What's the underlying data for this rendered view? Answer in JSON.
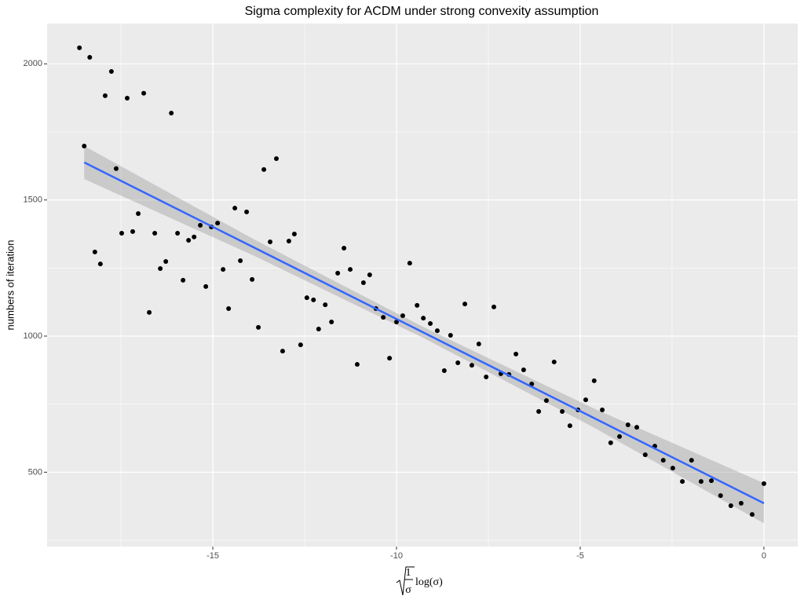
{
  "chart_data": {
    "type": "scatter",
    "title": "Sigma complexity for ACDM under strong convexity assumption",
    "y_label": "numbers of iteration",
    "x_label": {
      "numerator": "1",
      "denominator": "σ",
      "function": "log(σ)"
    },
    "xlim": [
      -19.51,
      0.92
    ],
    "ylim": [
      227,
      2148
    ],
    "xticks": [
      -15,
      -10,
      -5,
      0
    ],
    "yticks": [
      500,
      1000,
      1500,
      2000
    ],
    "minor_xticks": [
      -17.5,
      -12.5,
      -7.5,
      -2.5
    ],
    "minor_yticks": [
      250,
      750,
      1250,
      1750
    ],
    "grid": true,
    "point_color": "#000000",
    "line_color": "#3366FF",
    "band_color": "#999999",
    "x": [
      -18.63,
      -18.5,
      -18.35,
      -18.21,
      -18.06,
      -17.93,
      -17.76,
      -17.63,
      -17.48,
      -17.33,
      -17.18,
      -17.03,
      -16.88,
      -16.73,
      -16.58,
      -16.43,
      -16.28,
      -16.13,
      -15.96,
      -15.81,
      -15.66,
      -15.51,
      -15.34,
      -15.19,
      -15.04,
      -14.87,
      -14.72,
      -14.57,
      -14.4,
      -14.25,
      -14.08,
      -13.93,
      -13.76,
      -13.61,
      -13.44,
      -13.27,
      -13.1,
      -12.93,
      -12.78,
      -12.61,
      -12.44,
      -12.26,
      -12.12,
      -11.94,
      -11.77,
      -11.6,
      -11.43,
      -11.26,
      -11.07,
      -10.9,
      -10.73,
      -10.56,
      -10.36,
      -10.19,
      -10.0,
      -9.83,
      -9.64,
      -9.44,
      -9.27,
      -9.08,
      -8.89,
      -8.7,
      -8.53,
      -8.33,
      -8.14,
      -7.95,
      -7.76,
      -7.56,
      -7.35,
      -7.16,
      -6.94,
      -6.75,
      -6.54,
      -6.32,
      -6.13,
      -5.92,
      -5.71,
      -5.49,
      -5.28,
      -5.06,
      -4.85,
      -4.62,
      -4.4,
      -4.17,
      -3.93,
      -3.7,
      -3.46,
      -3.23,
      -2.97,
      -2.74,
      -2.48,
      -2.22,
      -1.97,
      -1.71,
      -1.43,
      -1.18,
      -0.9,
      -0.62,
      -0.32,
      0.0
    ],
    "values": [
      2059,
      1698,
      2024,
      1309,
      1265,
      1883,
      1972,
      1615,
      1378,
      1874,
      1384,
      1450,
      1892,
      1087,
      1378,
      1248,
      1274,
      1819,
      1378,
      1205,
      1352,
      1364,
      1407,
      1182,
      1401,
      1415,
      1245,
      1101,
      1470,
      1277,
      1456,
      1208,
      1032,
      1612,
      1346,
      1652,
      945,
      1349,
      1375,
      968,
      1141,
      1133,
      1026,
      1115,
      1052,
      1231,
      1323,
      1245,
      896,
      1196,
      1225,
      1101,
      1069,
      919,
      1052,
      1075,
      1268,
      1113,
      1066,
      1046,
      1020,
      873,
      1003,
      902,
      1118,
      893,
      971,
      850,
      1107,
      862,
      859,
      934,
      876,
      824,
      723,
      763,
      905,
      723,
      671,
      729,
      766,
      836,
      729,
      608,
      631,
      674,
      665,
      564,
      596,
      544,
      515,
      466,
      544,
      466,
      469,
      414,
      377,
      386,
      345,
      458
    ],
    "fit": {
      "x": [
        -18.5,
        0
      ],
      "y": [
        1638,
        386
      ]
    },
    "band": {
      "x": [
        -18.5,
        -13.875,
        -9.25,
        -4.625,
        0
      ],
      "lower": [
        1577,
        1295,
        992,
        664,
        312
      ],
      "upper": [
        1698,
        1355,
        1032,
        734,
        460
      ]
    }
  }
}
